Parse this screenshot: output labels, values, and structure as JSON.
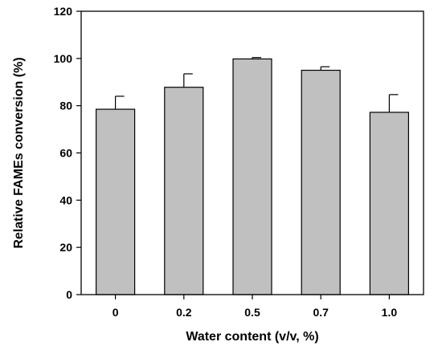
{
  "chart_data": {
    "type": "bar",
    "title": "",
    "xlabel": "Water content (v/v, %)",
    "ylabel": "Relative FAMEs conversion (%)",
    "categories": [
      "0",
      "0.2",
      "0.5",
      "0.7",
      "1.0"
    ],
    "values": [
      78.5,
      87.8,
      99.8,
      95.0,
      77.2
    ],
    "error_bars": [
      5.5,
      5.7,
      0.6,
      1.5,
      7.5
    ],
    "ylim": [
      0,
      120
    ],
    "y_ticks": [
      "0",
      "20",
      "40",
      "60",
      "80",
      "100",
      "120"
    ],
    "grid": false,
    "legend": "none",
    "colors": {
      "bar_fill": "#c0c0c0",
      "bar_stroke": "#000000",
      "axis": "#000000",
      "text": "#000000"
    }
  }
}
